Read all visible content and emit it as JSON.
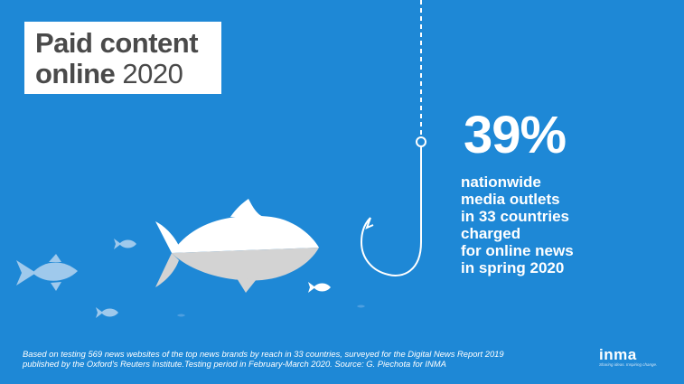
{
  "title": {
    "bold_text": "Paid content",
    "line2_bold": "online",
    "year": "2020"
  },
  "stat": {
    "value": "39%",
    "description_lines": [
      "nationwide",
      "media outlets",
      "in 33 countries",
      "charged",
      "for online news",
      "in spring 2020"
    ]
  },
  "footnote": {
    "lines": [
      "Based on testing 569 news websites of the top news brands by reach in 33 countries, surveyed for the Digital News Report 2019",
      "published by the Oxford's Reuters Institute.Testing period in February-March 2020. Source: G. Piechota for INMA"
    ]
  },
  "logo": {
    "word": "inma",
    "tagline": "Sharing ideas. Inspiring change."
  },
  "colors": {
    "background": "#1e88d6",
    "fish_main": "#ffffff",
    "fish_belly": "#d3d3d3",
    "fish_small": "#9fc9ec",
    "title_text": "#4a4a4a"
  },
  "icons": [
    "fishing-hook-icon",
    "big-fish-icon",
    "small-fish-icon"
  ]
}
